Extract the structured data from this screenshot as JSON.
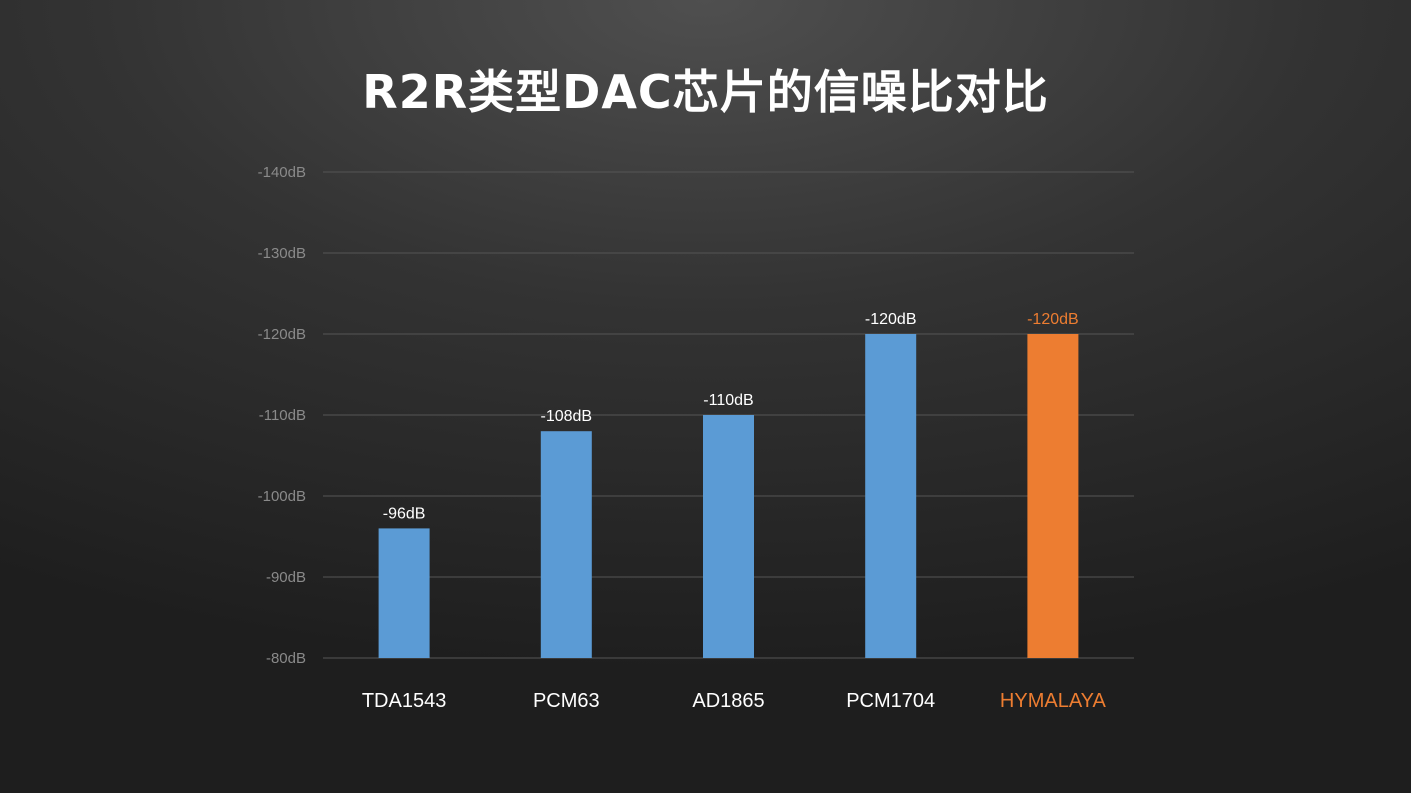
{
  "page": {
    "title": "R2R类型DAC芯片的信噪比对比"
  },
  "chart_data": {
    "type": "bar",
    "title": "R2R类型DAC芯片的信噪比对比",
    "xlabel": "",
    "ylabel": "",
    "unit_suffix": "dB",
    "categories": [
      "TDA1543",
      "PCM63",
      "AD1865",
      "PCM1704",
      "HYMALAYA"
    ],
    "values": [
      -96,
      -108,
      -110,
      -120,
      -120
    ],
    "value_labels": [
      "-96dB",
      "-108dB",
      "-110dB",
      "-120dB",
      "-120dB"
    ],
    "ylim": [
      -80,
      -140
    ],
    "y_ticks": [
      -80,
      -90,
      -100,
      -110,
      -120,
      -130,
      -140
    ],
    "y_tick_labels": [
      "-80dB",
      "-90dB",
      "-100dB",
      "-110dB",
      "-120dB",
      "-130dB",
      "-140dB"
    ],
    "grid": true,
    "legend": "none",
    "colors": {
      "default_bar": "#5b9bd5",
      "highlight_bar": "#ed7d31",
      "highlight_category": "HYMALAYA",
      "label_default": "#ffffff",
      "gridline": "#555555",
      "tick_label": "#8a8a8a"
    }
  }
}
